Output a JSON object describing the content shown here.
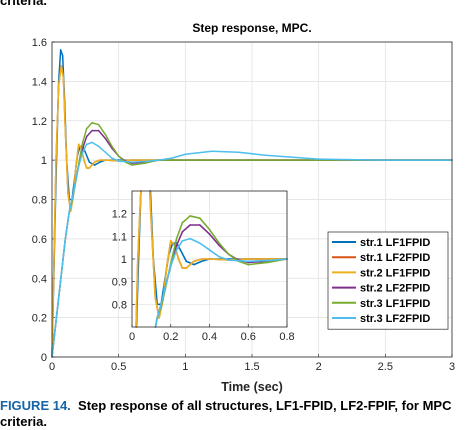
{
  "caption": {
    "top_fragment": "criteria.",
    "figure_label": "FIGURE 14.",
    "text": "Step response of all structures, LF1-FPID, LF2-FPIF, for MPC",
    "continuation": "criteria."
  },
  "chart_data": {
    "type": "line",
    "title": "Step response, MPC.",
    "xlabel": "Time (sec)",
    "ylabel": "",
    "xlim": [
      0,
      3
    ],
    "ylim": [
      0,
      1.6
    ],
    "xticks": [
      "0",
      "0.5",
      "1",
      "1.5",
      "2",
      "2.5",
      "3"
    ],
    "yticks": [
      "0",
      "0.2",
      "0.4",
      "0.6",
      "0.8",
      "1",
      "1.2",
      "1.4",
      "1.6"
    ],
    "grid": true,
    "legend_position": "bottom-right",
    "series": [
      {
        "name": "str.1 LF1FPID",
        "color": "#0072BD",
        "x": [
          0,
          0.03,
          0.05,
          0.065,
          0.08,
          0.095,
          0.11,
          0.13,
          0.15,
          0.17,
          0.19,
          0.21,
          0.23,
          0.25,
          0.28,
          0.32,
          0.36,
          0.4,
          0.5,
          0.6,
          0.8,
          1.0,
          3.0
        ],
        "y": [
          0,
          0.9,
          1.4,
          1.56,
          1.53,
          1.3,
          1.0,
          0.8,
          0.8,
          0.91,
          1.02,
          1.07,
          1.07,
          1.04,
          0.99,
          0.975,
          0.99,
          1.0,
          1.0,
          1.0,
          1.0,
          1.0,
          1.0
        ]
      },
      {
        "name": "str.1 LF2FPID",
        "color": "#D95319",
        "x": [
          0,
          0.03,
          0.05,
          0.07,
          0.085,
          0.1,
          0.12,
          0.14,
          0.16,
          0.18,
          0.2,
          0.22,
          0.24,
          0.26,
          0.28,
          0.32,
          0.36,
          0.4,
          0.5,
          0.6,
          1.0,
          3.0
        ],
        "y": [
          0,
          1.0,
          1.38,
          1.48,
          1.42,
          1.15,
          0.83,
          0.74,
          0.82,
          0.97,
          1.08,
          1.06,
          1.0,
          0.96,
          0.96,
          0.99,
          1.0,
          1.0,
          0.996,
          1.0,
          1.0,
          1.0
        ]
      },
      {
        "name": "str.2 LF1FPID",
        "color": "#EDB120",
        "x": [
          0,
          0.03,
          0.05,
          0.07,
          0.085,
          0.1,
          0.12,
          0.14,
          0.16,
          0.18,
          0.2,
          0.22,
          0.24,
          0.26,
          0.28,
          0.32,
          0.36,
          0.4,
          0.5,
          0.6,
          1.0,
          3.0
        ],
        "y": [
          0,
          1.0,
          1.38,
          1.48,
          1.42,
          1.15,
          0.83,
          0.74,
          0.82,
          0.97,
          1.08,
          1.06,
          1.0,
          0.96,
          0.96,
          0.99,
          1.0,
          1.0,
          0.996,
          1.0,
          1.0,
          1.0
        ]
      },
      {
        "name": "str.2 LF2FPID",
        "color": "#7E2F8E",
        "x": [
          0,
          0.05,
          0.1,
          0.13,
          0.15,
          0.17,
          0.2,
          0.23,
          0.26,
          0.3,
          0.35,
          0.4,
          0.45,
          0.5,
          0.55,
          0.6,
          0.7,
          0.8,
          1.0,
          3.0
        ],
        "y": [
          0,
          0.3,
          0.6,
          0.74,
          0.8,
          0.87,
          0.97,
          1.06,
          1.12,
          1.15,
          1.15,
          1.11,
          1.06,
          1.02,
          0.995,
          0.985,
          0.99,
          1.0,
          1.0,
          1.0
        ]
      },
      {
        "name": "str.3 LF1FPID",
        "color": "#77AC30",
        "x": [
          0,
          0.05,
          0.1,
          0.13,
          0.15,
          0.17,
          0.2,
          0.23,
          0.26,
          0.3,
          0.35,
          0.4,
          0.45,
          0.5,
          0.55,
          0.6,
          0.7,
          0.8,
          1.0,
          3.0
        ],
        "y": [
          0,
          0.3,
          0.6,
          0.74,
          0.79,
          0.86,
          0.98,
          1.09,
          1.16,
          1.19,
          1.18,
          1.13,
          1.07,
          1.02,
          0.99,
          0.975,
          0.985,
          1.0,
          1.0,
          1.0
        ]
      },
      {
        "name": "str.3 LF2FPID",
        "color": "#4DBEEE",
        "x": [
          0,
          0.05,
          0.1,
          0.13,
          0.15,
          0.17,
          0.2,
          0.23,
          0.26,
          0.3,
          0.35,
          0.4,
          0.45,
          0.5,
          0.6,
          0.7,
          0.8,
          0.9,
          1.0,
          1.2,
          1.4,
          1.6,
          2.0,
          2.5,
          3.0
        ],
        "y": [
          0,
          0.3,
          0.6,
          0.74,
          0.8,
          0.87,
          0.97,
          1.04,
          1.08,
          1.09,
          1.07,
          1.04,
          1.01,
          0.995,
          0.99,
          0.993,
          1.0,
          1.01,
          1.03,
          1.045,
          1.04,
          1.025,
          1.005,
          1.0,
          1.0
        ]
      }
    ],
    "inset": {
      "xlim": [
        0,
        0.8
      ],
      "ylim": [
        0.7,
        1.3
      ],
      "xticks": [
        "0",
        "0.2",
        "0.4",
        "0.6",
        "0.8"
      ],
      "yticks": [
        "0.8",
        "0.9",
        "1",
        "1.1",
        "1.2"
      ]
    }
  }
}
